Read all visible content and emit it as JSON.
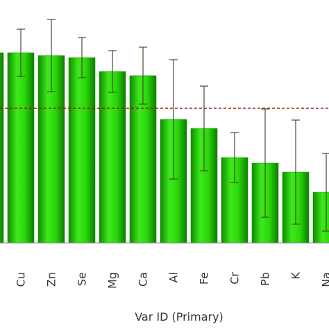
{
  "chart_data": {
    "type": "bar",
    "x_label": "Var ID (Primary)",
    "categories": [
      null,
      "Cu",
      "Zn",
      "Se",
      "Mg",
      "Ca",
      "Al",
      "Fe",
      "Cr",
      "Pb",
      "K",
      "Na"
    ],
    "values": [
      27.4,
      27.4,
      27.0,
      26.7,
      24.7,
      24.1,
      17.8,
      16.5,
      12.3,
      11.5,
      10.2,
      7.3
    ],
    "errors": [
      null,
      3.4,
      5.2,
      2.9,
      3.0,
      4.1,
      8.6,
      6.1,
      3.6,
      7.8,
      7.5,
      5.6
    ],
    "color": "#22cc00",
    "error_color": "#4a4a2a",
    "reference_line": 19.4,
    "reference_color": "#b01010",
    "ylim": [
      0,
      35
    ]
  }
}
